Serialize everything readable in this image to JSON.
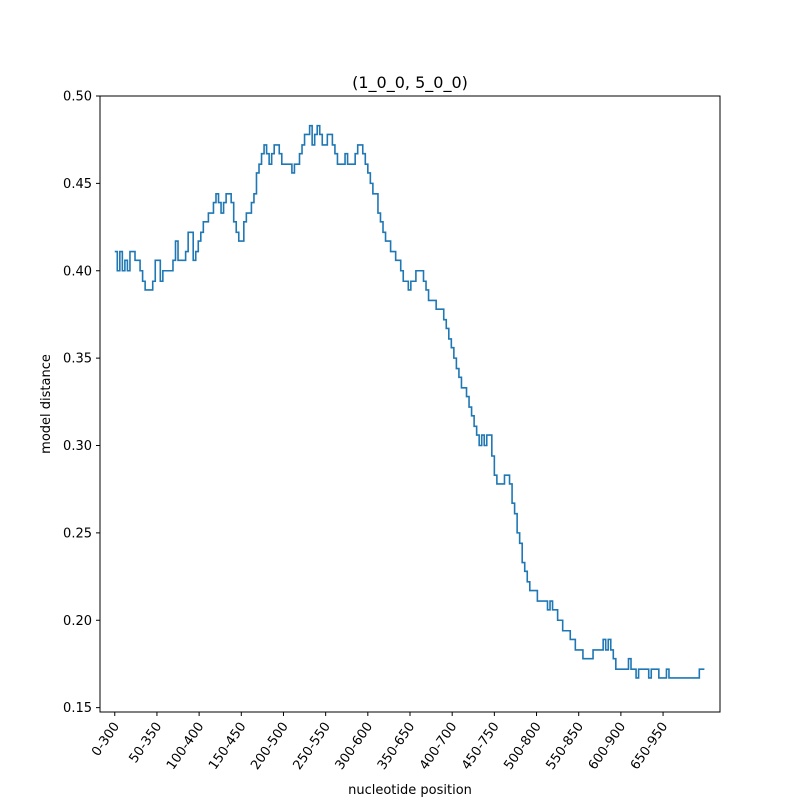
{
  "chart_data": {
    "type": "line",
    "title": "(1_0_0, 5_0_0)",
    "xlabel": "nucleotide position",
    "ylabel": "model distance",
    "xlim": [
      -17.5,
      717.5
    ],
    "ylim": [
      0.1475,
      0.5
    ],
    "grid": false,
    "line_color": "#1f77b4",
    "x_ticks": [
      {
        "value": 0,
        "label": "0-300"
      },
      {
        "value": 50,
        "label": "50-350"
      },
      {
        "value": 100,
        "label": "100-400"
      },
      {
        "value": 150,
        "label": "150-450"
      },
      {
        "value": 200,
        "label": "200-500"
      },
      {
        "value": 250,
        "label": "250-550"
      },
      {
        "value": 300,
        "label": "300-600"
      },
      {
        "value": 350,
        "label": "350-650"
      },
      {
        "value": 400,
        "label": "400-700"
      },
      {
        "value": 450,
        "label": "450-750"
      },
      {
        "value": 500,
        "label": "500-800"
      },
      {
        "value": 550,
        "label": "550-850"
      },
      {
        "value": 600,
        "label": "600-900"
      },
      {
        "value": 650,
        "label": "650-950"
      }
    ],
    "y_ticks": [
      {
        "value": 0.15,
        "label": "0.15"
      },
      {
        "value": 0.2,
        "label": "0.20"
      },
      {
        "value": 0.25,
        "label": "0.25"
      },
      {
        "value": 0.3,
        "label": "0.30"
      },
      {
        "value": 0.35,
        "label": "0.35"
      },
      {
        "value": 0.4,
        "label": "0.40"
      },
      {
        "value": 0.45,
        "label": "0.45"
      },
      {
        "value": 0.5,
        "label": "0.50"
      }
    ],
    "series": [
      {
        "x": [
          0,
          3,
          6,
          9,
          12,
          15,
          18,
          21,
          24,
          27,
          30,
          33,
          36,
          39,
          42,
          45,
          48,
          51,
          54,
          57,
          60,
          63,
          66,
          69,
          72,
          75,
          78,
          81,
          84,
          87,
          90,
          93,
          96,
          99,
          102,
          105,
          108,
          111,
          114,
          117,
          120,
          123,
          126,
          129,
          132,
          135,
          138,
          141,
          144,
          147,
          150,
          153,
          156,
          159,
          162,
          165,
          168,
          171,
          174,
          177,
          180,
          183,
          186,
          189,
          192,
          195,
          198,
          201,
          204,
          207,
          210,
          213,
          216,
          219,
          222,
          225,
          228,
          231,
          234,
          237,
          240,
          243,
          246,
          249,
          252,
          255,
          258,
          261,
          264,
          267,
          270,
          273,
          276,
          279,
          282,
          285,
          288,
          291,
          294,
          297,
          300,
          303,
          306,
          309,
          312,
          315,
          318,
          321,
          324,
          327,
          330,
          333,
          336,
          339,
          342,
          345,
          348,
          351,
          354,
          357,
          360,
          363,
          366,
          369,
          372,
          375,
          378,
          381,
          384,
          387,
          390,
          393,
          396,
          399,
          402,
          405,
          408,
          411,
          414,
          417,
          420,
          423,
          426,
          429,
          432,
          435,
          438,
          441,
          444,
          447,
          450,
          453,
          456,
          459,
          462,
          465,
          468,
          471,
          474,
          477,
          480,
          483,
          486,
          489,
          492,
          495,
          498,
          501,
          504,
          507,
          510,
          513,
          516,
          519,
          522,
          525,
          528,
          531,
          534,
          537,
          540,
          543,
          546,
          549,
          552,
          555,
          558,
          561,
          564,
          567,
          570,
          573,
          576,
          579,
          582,
          585,
          588,
          591,
          594,
          597,
          600,
          603,
          606,
          609,
          612,
          615,
          618,
          621,
          624,
          627,
          630,
          633,
          636,
          639,
          642,
          645,
          648,
          651,
          654,
          657,
          660,
          663,
          666,
          669,
          672,
          675,
          678,
          681,
          684,
          687,
          690,
          693,
          696,
          699
        ],
        "values": [
          0.411,
          0.4,
          0.411,
          0.4,
          0.406,
          0.4,
          0.411,
          0.411,
          0.406,
          0.406,
          0.4,
          0.394,
          0.389,
          0.389,
          0.389,
          0.394,
          0.406,
          0.406,
          0.394,
          0.4,
          0.4,
          0.4,
          0.4,
          0.406,
          0.417,
          0.406,
          0.406,
          0.406,
          0.411,
          0.422,
          0.422,
          0.406,
          0.411,
          0.417,
          0.422,
          0.428,
          0.428,
          0.433,
          0.433,
          0.439,
          0.444,
          0.439,
          0.433,
          0.439,
          0.444,
          0.444,
          0.439,
          0.428,
          0.422,
          0.417,
          0.417,
          0.428,
          0.433,
          0.433,
          0.439,
          0.444,
          0.456,
          0.461,
          0.467,
          0.472,
          0.467,
          0.461,
          0.467,
          0.472,
          0.472,
          0.467,
          0.461,
          0.461,
          0.461,
          0.461,
          0.456,
          0.461,
          0.461,
          0.467,
          0.472,
          0.478,
          0.478,
          0.483,
          0.472,
          0.478,
          0.483,
          0.478,
          0.472,
          0.472,
          0.478,
          0.478,
          0.472,
          0.467,
          0.461,
          0.461,
          0.461,
          0.467,
          0.461,
          0.461,
          0.461,
          0.467,
          0.472,
          0.472,
          0.467,
          0.461,
          0.456,
          0.45,
          0.444,
          0.444,
          0.433,
          0.428,
          0.422,
          0.417,
          0.417,
          0.411,
          0.411,
          0.406,
          0.406,
          0.4,
          0.394,
          0.394,
          0.389,
          0.394,
          0.394,
          0.4,
          0.4,
          0.4,
          0.394,
          0.389,
          0.383,
          0.383,
          0.383,
          0.378,
          0.378,
          0.378,
          0.372,
          0.367,
          0.361,
          0.356,
          0.35,
          0.344,
          0.339,
          0.333,
          0.333,
          0.328,
          0.322,
          0.317,
          0.311,
          0.306,
          0.3,
          0.306,
          0.3,
          0.306,
          0.306,
          0.294,
          0.283,
          0.278,
          0.278,
          0.278,
          0.283,
          0.283,
          0.278,
          0.267,
          0.261,
          0.25,
          0.244,
          0.233,
          0.228,
          0.222,
          0.217,
          0.217,
          0.217,
          0.211,
          0.211,
          0.211,
          0.211,
          0.206,
          0.211,
          0.206,
          0.206,
          0.2,
          0.2,
          0.194,
          0.194,
          0.194,
          0.189,
          0.189,
          0.183,
          0.183,
          0.183,
          0.178,
          0.178,
          0.178,
          0.178,
          0.183,
          0.183,
          0.183,
          0.183,
          0.189,
          0.183,
          0.189,
          0.183,
          0.178,
          0.172,
          0.172,
          0.172,
          0.172,
          0.172,
          0.178,
          0.172,
          0.172,
          0.167,
          0.172,
          0.172,
          0.172,
          0.172,
          0.167,
          0.172,
          0.172,
          0.172,
          0.167,
          0.167,
          0.167,
          0.172,
          0.167,
          0.167,
          0.167,
          0.167,
          0.167,
          0.167,
          0.167,
          0.167,
          0.167,
          0.167,
          0.167,
          0.167,
          0.172,
          0.172,
          0.172
        ]
      }
    ]
  }
}
